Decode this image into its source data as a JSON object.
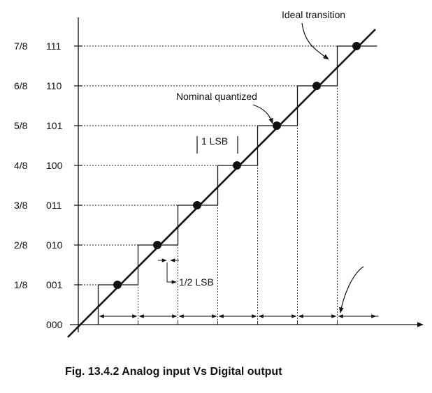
{
  "figure": {
    "caption": "Fig. 13.4.2 Analog input Vs Digital output",
    "fractions": [
      "1/8",
      "2/8",
      "3/8",
      "4/8",
      "5/8",
      "6/8",
      "7/8"
    ],
    "codes": [
      "000",
      "001",
      "010",
      "011",
      "100",
      "101",
      "110",
      "111"
    ],
    "annotations": {
      "ideal_transition": "Ideal transition",
      "nominal_quantized": "Nominal quantized",
      "one_lsb": "1 LSB",
      "half_lsb": "1/2 LSB"
    },
    "line_color": "#111111",
    "dot_color": "#111111"
  }
}
